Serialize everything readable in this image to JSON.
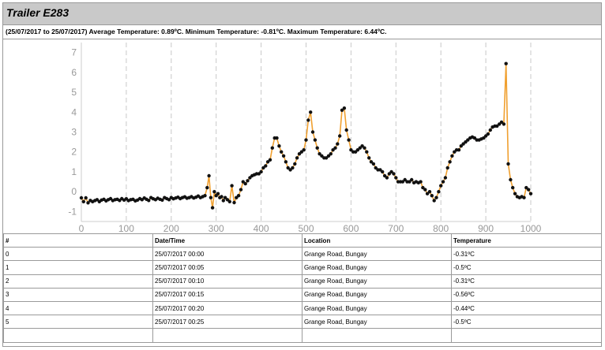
{
  "title": "Trailer E283",
  "summary": "(25/07/2017 to 25/07/2017) Average Temperature: 0.89ºC. Minimum Temperature: -0.81ºC. Maximum Temperature: 6.44ºC.",
  "colors": {
    "line": "#f0a030",
    "marker": "#111111",
    "grid": "#c8c8c8",
    "axis_text": "#999999",
    "header_bg": "#c9c9c9"
  },
  "chart_data": {
    "type": "line",
    "xlim": [
      0,
      1000
    ],
    "ylim": [
      -1.5,
      7.5
    ],
    "x_ticks": [
      0,
      100,
      200,
      300,
      400,
      500,
      600,
      700,
      800,
      900,
      1000
    ],
    "y_ticks": [
      -1,
      0,
      1,
      2,
      3,
      4,
      5,
      6,
      7
    ],
    "grid": "vertical dashed",
    "series": [
      {
        "values": [
          [
            0,
            -0.31
          ],
          [
            5,
            -0.5
          ],
          [
            10,
            -0.31
          ],
          [
            15,
            -0.56
          ],
          [
            20,
            -0.44
          ],
          [
            25,
            -0.5
          ],
          [
            30,
            -0.45
          ],
          [
            35,
            -0.4
          ],
          [
            40,
            -0.5
          ],
          [
            45,
            -0.42
          ],
          [
            50,
            -0.38
          ],
          [
            55,
            -0.46
          ],
          [
            60,
            -0.4
          ],
          [
            65,
            -0.35
          ],
          [
            70,
            -0.45
          ],
          [
            75,
            -0.4
          ],
          [
            80,
            -0.38
          ],
          [
            85,
            -0.44
          ],
          [
            90,
            -0.35
          ],
          [
            95,
            -0.42
          ],
          [
            100,
            -0.36
          ],
          [
            105,
            -0.45
          ],
          [
            110,
            -0.4
          ],
          [
            115,
            -0.38
          ],
          [
            120,
            -0.46
          ],
          [
            125,
            -0.42
          ],
          [
            130,
            -0.35
          ],
          [
            135,
            -0.4
          ],
          [
            140,
            -0.32
          ],
          [
            145,
            -0.38
          ],
          [
            150,
            -0.44
          ],
          [
            155,
            -0.3
          ],
          [
            160,
            -0.36
          ],
          [
            165,
            -0.4
          ],
          [
            170,
            -0.33
          ],
          [
            175,
            -0.38
          ],
          [
            180,
            -0.42
          ],
          [
            185,
            -0.3
          ],
          [
            190,
            -0.35
          ],
          [
            195,
            -0.4
          ],
          [
            200,
            -0.3
          ],
          [
            205,
            -0.36
          ],
          [
            210,
            -0.32
          ],
          [
            215,
            -0.28
          ],
          [
            220,
            -0.35
          ],
          [
            225,
            -0.3
          ],
          [
            230,
            -0.26
          ],
          [
            235,
            -0.33
          ],
          [
            240,
            -0.3
          ],
          [
            245,
            -0.25
          ],
          [
            250,
            -0.32
          ],
          [
            255,
            -0.28
          ],
          [
            260,
            -0.22
          ],
          [
            265,
            -0.3
          ],
          [
            270,
            -0.25
          ],
          [
            275,
            -0.2
          ],
          [
            280,
            0.2
          ],
          [
            284,
            0.8
          ],
          [
            288,
            -0.3
          ],
          [
            292,
            -0.81
          ],
          [
            296,
            0.0
          ],
          [
            300,
            -0.2
          ],
          [
            304,
            -0.1
          ],
          [
            308,
            -0.3
          ],
          [
            312,
            -0.25
          ],
          [
            316,
            -0.45
          ],
          [
            320,
            -0.3
          ],
          [
            325,
            -0.4
          ],
          [
            330,
            -0.5
          ],
          [
            335,
            0.3
          ],
          [
            340,
            -0.55
          ],
          [
            345,
            -0.3
          ],
          [
            350,
            -0.2
          ],
          [
            355,
            0.1
          ],
          [
            360,
            0.5
          ],
          [
            365,
            0.4
          ],
          [
            370,
            0.55
          ],
          [
            375,
            0.7
          ],
          [
            380,
            0.8
          ],
          [
            385,
            0.85
          ],
          [
            390,
            0.9
          ],
          [
            395,
            0.9
          ],
          [
            400,
            1.0
          ],
          [
            405,
            1.2
          ],
          [
            410,
            1.3
          ],
          [
            415,
            1.5
          ],
          [
            420,
            1.6
          ],
          [
            425,
            2.2
          ],
          [
            430,
            2.7
          ],
          [
            435,
            2.7
          ],
          [
            440,
            2.3
          ],
          [
            445,
            2.0
          ],
          [
            450,
            1.8
          ],
          [
            455,
            1.5
          ],
          [
            460,
            1.2
          ],
          [
            465,
            1.1
          ],
          [
            470,
            1.2
          ],
          [
            475,
            1.4
          ],
          [
            480,
            1.7
          ],
          [
            485,
            1.9
          ],
          [
            490,
            2.0
          ],
          [
            495,
            2.1
          ],
          [
            500,
            2.6
          ],
          [
            505,
            3.6
          ],
          [
            510,
            4.0
          ],
          [
            515,
            3.0
          ],
          [
            520,
            2.6
          ],
          [
            525,
            2.2
          ],
          [
            530,
            1.9
          ],
          [
            535,
            1.8
          ],
          [
            540,
            1.7
          ],
          [
            545,
            1.7
          ],
          [
            550,
            1.8
          ],
          [
            555,
            1.9
          ],
          [
            560,
            2.1
          ],
          [
            565,
            2.2
          ],
          [
            570,
            2.4
          ],
          [
            575,
            2.8
          ],
          [
            580,
            4.1
          ],
          [
            585,
            4.2
          ],
          [
            590,
            3.1
          ],
          [
            595,
            2.6
          ],
          [
            600,
            2.1
          ],
          [
            605,
            2.0
          ],
          [
            610,
            2.0
          ],
          [
            615,
            2.1
          ],
          [
            620,
            2.2
          ],
          [
            625,
            2.3
          ],
          [
            630,
            2.2
          ],
          [
            635,
            2.0
          ],
          [
            640,
            1.7
          ],
          [
            645,
            1.5
          ],
          [
            650,
            1.4
          ],
          [
            655,
            1.2
          ],
          [
            660,
            1.1
          ],
          [
            665,
            1.1
          ],
          [
            670,
            1.0
          ],
          [
            675,
            0.8
          ],
          [
            680,
            0.7
          ],
          [
            685,
            0.9
          ],
          [
            690,
            1.0
          ],
          [
            695,
            0.9
          ],
          [
            700,
            0.7
          ],
          [
            705,
            0.5
          ],
          [
            710,
            0.5
          ],
          [
            715,
            0.5
          ],
          [
            720,
            0.6
          ],
          [
            725,
            0.5
          ],
          [
            730,
            0.5
          ],
          [
            735,
            0.6
          ],
          [
            740,
            0.45
          ],
          [
            745,
            0.5
          ],
          [
            750,
            0.45
          ],
          [
            755,
            0.5
          ],
          [
            760,
            0.2
          ],
          [
            765,
            0.1
          ],
          [
            770,
            -0.1
          ],
          [
            775,
            0.0
          ],
          [
            780,
            -0.2
          ],
          [
            785,
            -0.45
          ],
          [
            790,
            -0.3
          ],
          [
            795,
            0.0
          ],
          [
            800,
            0.3
          ],
          [
            805,
            0.5
          ],
          [
            810,
            0.7
          ],
          [
            815,
            1.2
          ],
          [
            820,
            1.5
          ],
          [
            825,
            1.8
          ],
          [
            830,
            2.0
          ],
          [
            835,
            2.1
          ],
          [
            840,
            2.1
          ],
          [
            845,
            2.3
          ],
          [
            850,
            2.4
          ],
          [
            855,
            2.5
          ],
          [
            860,
            2.6
          ],
          [
            865,
            2.7
          ],
          [
            870,
            2.75
          ],
          [
            875,
            2.7
          ],
          [
            880,
            2.6
          ],
          [
            885,
            2.6
          ],
          [
            890,
            2.65
          ],
          [
            895,
            2.7
          ],
          [
            900,
            2.8
          ],
          [
            905,
            2.9
          ],
          [
            910,
            3.1
          ],
          [
            915,
            3.25
          ],
          [
            920,
            3.3
          ],
          [
            925,
            3.3
          ],
          [
            930,
            3.4
          ],
          [
            935,
            3.5
          ],
          [
            940,
            3.4
          ],
          [
            945,
            6.44
          ],
          [
            950,
            1.4
          ],
          [
            955,
            0.6
          ],
          [
            960,
            0.2
          ],
          [
            965,
            -0.1
          ],
          [
            970,
            -0.25
          ],
          [
            975,
            -0.3
          ],
          [
            980,
            -0.25
          ],
          [
            985,
            -0.3
          ],
          [
            990,
            0.2
          ],
          [
            995,
            0.1
          ],
          [
            1000,
            -0.1
          ]
        ]
      }
    ]
  },
  "table": {
    "headers": [
      "#",
      "Date/Time",
      "Location",
      "Temperature"
    ],
    "rows": [
      [
        "0",
        "25/07/2017 00:00",
        "Grange Road, Bungay",
        "-0.31ºC"
      ],
      [
        "1",
        "25/07/2017 00:05",
        "Grange Road, Bungay",
        "-0.5ºC"
      ],
      [
        "2",
        "25/07/2017 00:10",
        "Grange Road, Bungay",
        "-0.31ºC"
      ],
      [
        "3",
        "25/07/2017 00:15",
        "Grange Road, Bungay",
        "-0.56ºC"
      ],
      [
        "4",
        "25/07/2017 00:20",
        "Grange Road, Bungay",
        "-0.44ºC"
      ],
      [
        "5",
        "25/07/2017 00:25",
        "Grange Road, Bungay",
        "-0.5ºC"
      ],
      [
        "",
        "",
        "",
        ""
      ]
    ]
  }
}
